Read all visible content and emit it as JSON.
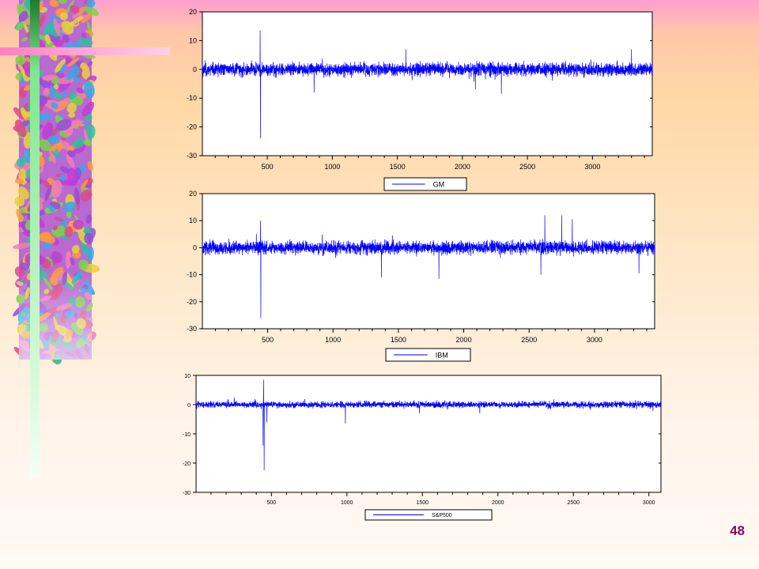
{
  "slide": {
    "number": "48"
  },
  "colors": {
    "series": "#0000ff",
    "axis": "#000000",
    "plot_bg": "#ffffff"
  },
  "chart_data": [
    {
      "type": "line",
      "series": [
        {
          "name": "GM",
          "spikes": [
            [
              445,
              13.5
            ],
            [
              448,
              -24
            ],
            [
              860,
              -8
            ],
            [
              1565,
              7
            ],
            [
              2100,
              -7
            ],
            [
              2300,
              -8.5
            ],
            [
              3300,
              7
            ]
          ],
          "volatility": 2.2
        }
      ],
      "x_range": [
        1,
        3460
      ],
      "ylim": [
        -30,
        20
      ],
      "y_ticks": [
        20,
        10,
        0,
        -10,
        -20,
        -30
      ],
      "x_ticks": [
        500,
        1000,
        1500,
        2000,
        2500,
        3000
      ],
      "legend": "bottom"
    },
    {
      "type": "line",
      "series": [
        {
          "name": "IBM",
          "spikes": [
            [
              445,
              10
            ],
            [
              448,
              -26
            ],
            [
              1370,
              -11
            ],
            [
              1810,
              -11.5
            ],
            [
              2620,
              12
            ],
            [
              2750,
              12
            ],
            [
              2830,
              10.5
            ],
            [
              2590,
              -10
            ],
            [
              3340,
              -9.5
            ]
          ],
          "volatility": 2.4
        }
      ],
      "x_range": [
        1,
        3460
      ],
      "ylim": [
        -30,
        20
      ],
      "y_ticks": [
        20,
        10,
        0,
        -10,
        -20,
        -30
      ],
      "x_ticks": [
        500,
        1000,
        1500,
        2000,
        2500,
        3000
      ],
      "legend": "bottom"
    },
    {
      "type": "line",
      "series": [
        {
          "name": "S&P500",
          "spikes": [
            [
              448,
              8.5
            ],
            [
              452,
              -22.5
            ],
            [
              445,
              -14
            ],
            [
              470,
              -6
            ],
            [
              990,
              -6.5
            ],
            [
              1480,
              -3
            ],
            [
              1880,
              -3
            ]
          ],
          "volatility": 1.1
        }
      ],
      "x_range": [
        1,
        3080
      ],
      "ylim": [
        -30,
        10
      ],
      "y_ticks": [
        10,
        0,
        -10,
        -20,
        -30
      ],
      "x_ticks": [
        500,
        1000,
        1500,
        2000,
        2500,
        3000
      ],
      "legend": "bottom"
    }
  ]
}
